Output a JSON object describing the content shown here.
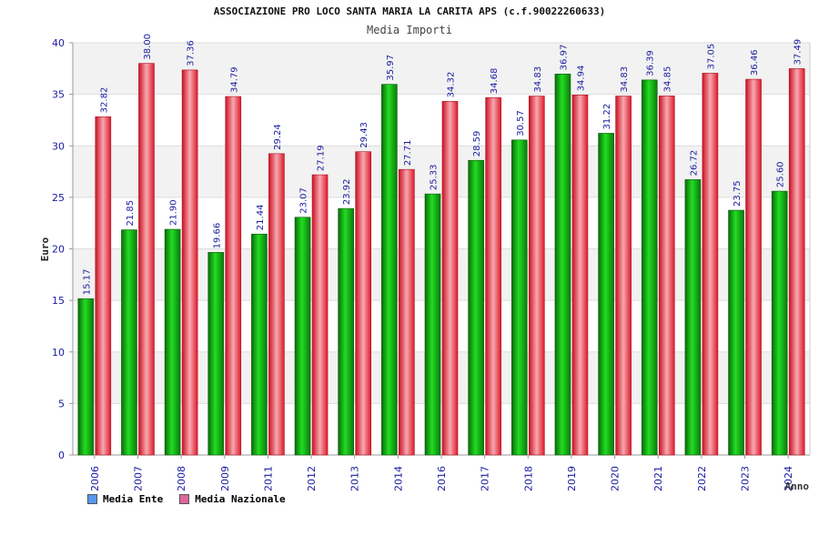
{
  "chart_data": {
    "type": "bar",
    "title": "ASSOCIAZIONE PRO LOCO SANTA MARIA LA CARITA APS (c.f.90022260633)",
    "subtitle": "Media Importi",
    "xlabel": "Anno",
    "ylabel": "Euro",
    "ylim": [
      0,
      40
    ],
    "yticks": [
      "0",
      "5",
      "10",
      "15",
      "20",
      "25",
      "30",
      "35",
      "40"
    ],
    "grid": true,
    "categories": [
      "2006",
      "2007",
      "2008",
      "2009",
      "2011",
      "2012",
      "2013",
      "2014",
      "2016",
      "2017",
      "2018",
      "2019",
      "2020",
      "2021",
      "2022",
      "2023",
      "2024"
    ],
    "series": [
      {
        "name": "Media Ente",
        "values": [
          15.17,
          21.85,
          21.9,
          19.66,
          21.44,
          23.07,
          23.92,
          35.97,
          25.33,
          28.59,
          30.57,
          36.97,
          31.22,
          36.39,
          26.72,
          23.75,
          25.6
        ],
        "labels": [
          "15.17",
          "21.85",
          "21.90",
          "19.66",
          "21.44",
          "23.07",
          "23.92",
          "35.97",
          "25.33",
          "28.59",
          "30.57",
          "36.97",
          "31.22",
          "36.39",
          "26.72",
          "23.75",
          "25.60"
        ]
      },
      {
        "name": "Media Nazionale",
        "values": [
          32.82,
          38.0,
          37.36,
          34.79,
          29.24,
          27.19,
          29.43,
          27.71,
          34.32,
          34.68,
          34.83,
          34.94,
          34.83,
          34.85,
          37.05,
          36.46,
          37.49
        ],
        "labels": [
          "32.82",
          "38.00",
          "37.36",
          "34.79",
          "29.24",
          "27.19",
          "29.43",
          "27.71",
          "34.32",
          "34.68",
          "34.83",
          "34.94",
          "34.83",
          "34.85",
          "37.05",
          "36.46",
          "37.49"
        ]
      }
    ],
    "legend_position": "bottom-left",
    "colors": {
      "series1_bar": "#11aa11",
      "series2_bar": "#ee2233",
      "series1_legend": "#5599ee",
      "series2_legend": "#dd6699",
      "axis_text": "#1a1aa0",
      "band": "#f2f2f2"
    }
  }
}
